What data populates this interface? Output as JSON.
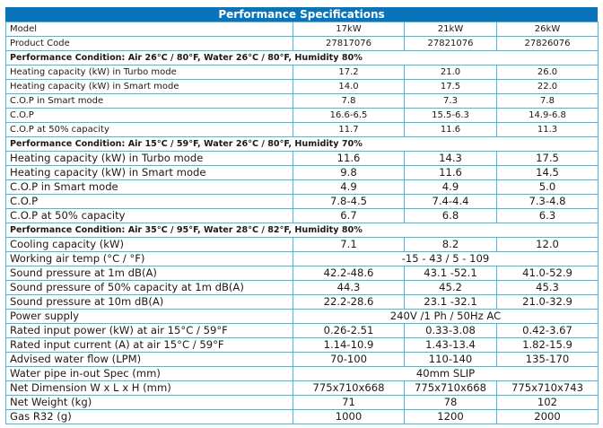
{
  "title": "Performance Specifications",
  "columns": [
    "17kW",
    "21kW",
    "26kW"
  ],
  "model_label": "Model",
  "product_code": {
    "label": "Product Code",
    "values": [
      "27817076",
      "27821076",
      "27826076"
    ]
  },
  "section1": {
    "condition": "Performance Condition: Air 26°C / 80°F, Water 26°C / 80°F, Humidity 80%",
    "rows": [
      {
        "label": "Heating capacity (kW) in Turbo mode",
        "values": [
          "17.2",
          "21.0",
          "26.0"
        ]
      },
      {
        "label": "Heating capacity (kW) in Smart mode",
        "values": [
          "14.0",
          "17.5",
          "22.0"
        ]
      },
      {
        "label": "C.O.P in Smart mode",
        "values": [
          "7.8",
          "7.3",
          "7.8"
        ]
      },
      {
        "label": "C.O.P",
        "values": [
          "16.6-6.5",
          "15.5-6.3",
          "14.9-6.8"
        ]
      },
      {
        "label": "C.O.P at 50% capacity",
        "values": [
          "11.7",
          "11.6",
          "11.3"
        ]
      }
    ]
  },
  "section2": {
    "condition": "Performance Condition:  Air 15°C / 59°F, Water 26°C / 80°F, Humidity 70%",
    "rows": [
      {
        "label": "Heating capacity (kW) in Turbo mode",
        "values": [
          "11.6",
          "14.3",
          "17.5"
        ]
      },
      {
        "label": "Heating capacity (kW) in Smart mode",
        "values": [
          "9.8",
          "11.6",
          "14.5"
        ]
      },
      {
        "label": "C.O.P in Smart mode",
        "values": [
          "4.9",
          "4.9",
          "5.0"
        ]
      },
      {
        "label": "C.O.P",
        "values": [
          "7.8-4.5",
          "7.4-4.4",
          "7.3-4.8"
        ]
      },
      {
        "label": "C.O.P at 50% capacity",
        "values": [
          "6.7",
          "6.8",
          "6.3"
        ]
      }
    ]
  },
  "section3": {
    "condition": "Performance Condition:  Air 35°C / 95°F, Water 28°C / 82°F, Humidity 80%",
    "cooling": {
      "label": "Cooling capacity (kW)",
      "values": [
        "7.1",
        "8.2",
        "12.0"
      ]
    },
    "working_temp": {
      "label": "Working air temp (°C / °F)",
      "value": "-15 - 43 / 5 - 109"
    },
    "sound_1m": {
      "label": "Sound pressure at 1m dB(A)",
      "values": [
        "42.2-48.6",
        "43.1 -52.1",
        "41.0-52.9"
      ]
    },
    "sound_50": {
      "label": "Sound pressure of 50% capacity at 1m dB(A)",
      "values": [
        "44.3",
        "45.2",
        "45.3"
      ]
    },
    "sound_10m": {
      "label": "Sound pressure at 10m dB(A)",
      "values": [
        "22.2-28.6",
        "23.1 -32.1",
        "21.0-32.9"
      ]
    },
    "power_supply": {
      "label": "Power supply",
      "value": "240V /1 Ph / 50Hz AC"
    },
    "input_power": {
      "label": "Rated input power (kW) at air 15°C / 59°F",
      "values": [
        "0.26-2.51",
        "0.33-3.08",
        "0.42-3.67"
      ]
    },
    "input_current": {
      "label": "Rated input current (A) at air 15°C / 59°F",
      "values": [
        "1.14-10.9",
        "1.43-13.4",
        "1.82-15.9"
      ]
    },
    "water_flow": {
      "label": "Advised water flow (LPM)",
      "values": [
        "70-100",
        "110-140",
        "135-170"
      ]
    },
    "pipe_spec": {
      "label": "Water pipe in-out Spec (mm)",
      "value": "40mm SLIP"
    },
    "dimension": {
      "label": "Net Dimension W x L x H (mm)",
      "values": [
        "775x710x668",
        "775x710x668",
        "775x710x743"
      ]
    },
    "weight": {
      "label": "Net Weight (kg)",
      "values": [
        "71",
        "78",
        "102"
      ]
    },
    "gas": {
      "label": "Gas R32 (g)",
      "values": [
        "1000",
        "1200",
        "2000"
      ]
    }
  },
  "colors": {
    "header_bg": "#0a74ba",
    "border": "#49b6e6"
  }
}
